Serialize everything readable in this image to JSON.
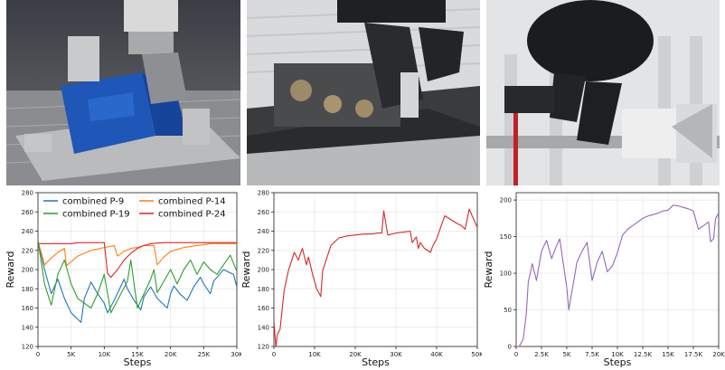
{
  "photos": [
    {
      "name": "robot-arm-blue-fixture-photo"
    },
    {
      "name": "robot-gripper-mechanism-photo"
    },
    {
      "name": "robot-gripper-rail-photo"
    }
  ],
  "chart_data": [
    {
      "type": "line",
      "xlabel": "Steps",
      "ylabel": "Reward",
      "xlim": [
        0,
        30000
      ],
      "ylim": [
        120,
        280
      ],
      "xticks": [
        "0",
        "5K",
        "10K",
        "15K",
        "20K",
        "25K",
        "30K"
      ],
      "xtick_values": [
        0,
        5000,
        10000,
        15000,
        20000,
        25000,
        30000
      ],
      "yticks": [
        "120",
        "140",
        "160",
        "180",
        "200",
        "220",
        "240",
        "260",
        "280"
      ],
      "ytick_values": [
        120,
        140,
        160,
        180,
        200,
        220,
        240,
        260,
        280
      ],
      "grid": true,
      "legend": "top-left",
      "series": [
        {
          "name": "combined P-9",
          "color": "#1f77b4",
          "x": [
            0,
            500,
            1000,
            2000,
            3000,
            4000,
            5000,
            6500,
            7000,
            8000,
            9000,
            10000,
            10500,
            11500,
            13000,
            13500,
            14500,
            15500,
            16000,
            17000,
            18000,
            19500,
            20000,
            20500,
            21500,
            22500,
            23500,
            24500,
            25000,
            26000,
            26500,
            28000,
            29500,
            30000
          ],
          "y": [
            227,
            215,
            200,
            175,
            190,
            170,
            155,
            145,
            170,
            187,
            175,
            165,
            155,
            168,
            190,
            180,
            168,
            158,
            172,
            182,
            170,
            160,
            175,
            183,
            174,
            168,
            182,
            192,
            185,
            175,
            188,
            200,
            195,
            182
          ]
        },
        {
          "name": "combined P-14",
          "color": "#ff7f0e",
          "x": [
            0,
            1000,
            2000,
            3000,
            4000,
            4300,
            6000,
            8000,
            10000,
            11500,
            12000,
            13000,
            14000,
            15000,
            16000,
            17500,
            18000,
            19000,
            20000,
            22000,
            24000,
            25000,
            26000,
            28000,
            30000
          ],
          "y": [
            230,
            205,
            212,
            218,
            222,
            204,
            214,
            220,
            223,
            225,
            214,
            219,
            222,
            223,
            225,
            225,
            205,
            213,
            219,
            223,
            225,
            226,
            227,
            227,
            227
          ]
        },
        {
          "name": "combined P-19",
          "color": "#2ca02c",
          "x": [
            0,
            1000,
            2000,
            3000,
            4000,
            5000,
            6000,
            8000,
            9000,
            10000,
            11000,
            12000,
            13500,
            14000,
            15000,
            16000,
            17000,
            17500,
            18000,
            19000,
            20000,
            21000,
            22000,
            23000,
            24000,
            25000,
            26000,
            27000,
            28000,
            29000,
            30000
          ],
          "y": [
            230,
            185,
            163,
            195,
            210,
            185,
            170,
            160,
            175,
            195,
            155,
            168,
            188,
            210,
            160,
            175,
            190,
            200,
            176,
            188,
            200,
            185,
            200,
            210,
            195,
            208,
            200,
            195,
            205,
            215,
            198
          ]
        },
        {
          "name": "combined P-24",
          "color": "#d62728",
          "x": [
            0,
            1000,
            2000,
            3000,
            4000,
            5000,
            6000,
            8000,
            9500,
            10000,
            10500,
            11000,
            12000,
            13000,
            14000,
            15000,
            16000,
            16500,
            17000,
            19000,
            21000,
            23000,
            25000,
            27000,
            30000
          ],
          "y": [
            227,
            227,
            227,
            227,
            227,
            227,
            228,
            228,
            228,
            228,
            196,
            192,
            200,
            210,
            217,
            222,
            225,
            226,
            227,
            228,
            228,
            228,
            228,
            228,
            228
          ]
        }
      ]
    },
    {
      "type": "line",
      "xlabel": "Steps",
      "ylabel": "Reward",
      "xlim": [
        0,
        50000
      ],
      "ylim": [
        120,
        280
      ],
      "xticks": [
        "0",
        "10K",
        "20K",
        "30K",
        "40K",
        "50K"
      ],
      "xtick_values": [
        0,
        10000,
        20000,
        30000,
        40000,
        50000
      ],
      "yticks": [
        "120",
        "140",
        "160",
        "180",
        "200",
        "220",
        "240",
        "260",
        "280"
      ],
      "ytick_values": [
        120,
        140,
        160,
        180,
        200,
        220,
        240,
        260,
        280
      ],
      "grid": true,
      "series": [
        {
          "color": "#d62728",
          "x": [
            0,
            500,
            800,
            1500,
            2500,
            3500,
            5000,
            6000,
            7000,
            8000,
            8500,
            9500,
            10500,
            11500,
            12000,
            14000,
            16000,
            18000,
            20000,
            22000,
            24000,
            25500,
            26500,
            27000,
            28000,
            30000,
            32000,
            33500,
            34000,
            35000,
            35500,
            36000,
            37000,
            38500,
            39000,
            40000,
            42000,
            45000,
            46000,
            47000,
            48000,
            50000
          ],
          "y": [
            146,
            118,
            132,
            138,
            178,
            198,
            218,
            210,
            222,
            205,
            213,
            195,
            180,
            172,
            199,
            225,
            233,
            235,
            236,
            237,
            237,
            238,
            238,
            261,
            236,
            238,
            239,
            240,
            228,
            234,
            222,
            228,
            222,
            218,
            224,
            232,
            256,
            248,
            246,
            242,
            263,
            244
          ]
        }
      ]
    },
    {
      "type": "line",
      "xlabel": "Steps",
      "ylabel": "Reward",
      "xlim": [
        0,
        20000
      ],
      "ylim": [
        0,
        210
      ],
      "xticks": [
        "0",
        "2.5K",
        "5K",
        "7.5K",
        "10K",
        "12.5K",
        "15K",
        "17.5K",
        "20K"
      ],
      "xtick_values": [
        0,
        2500,
        5000,
        7500,
        10000,
        12500,
        15000,
        17500,
        20000
      ],
      "yticks": [
        "0",
        "50",
        "100",
        "150",
        "200"
      ],
      "ytick_values": [
        0,
        50,
        100,
        150,
        200
      ],
      "grid": true,
      "series": [
        {
          "color": "#9467bd",
          "x": [
            0,
            300,
            700,
            1000,
            1200,
            1600,
            2000,
            2500,
            3000,
            3500,
            4000,
            4300,
            5000,
            5200,
            6000,
            6500,
            7000,
            7500,
            8000,
            8500,
            9000,
            9500,
            10000,
            10500,
            11000,
            11500,
            12000,
            12500,
            13000,
            13500,
            14000,
            14500,
            15000,
            15500,
            16000,
            16500,
            17000,
            17500,
            18000,
            18500,
            19000,
            19200,
            19500,
            19700,
            20000
          ],
          "y": [
            0,
            0,
            10,
            45,
            88,
            113,
            90,
            130,
            145,
            120,
            138,
            147,
            80,
            50,
            115,
            130,
            142,
            90,
            115,
            130,
            102,
            110,
            128,
            152,
            160,
            165,
            170,
            175,
            178,
            180,
            182,
            185,
            186,
            193,
            192,
            190,
            188,
            185,
            160,
            165,
            170,
            143,
            147,
            175,
            182
          ]
        }
      ]
    }
  ]
}
